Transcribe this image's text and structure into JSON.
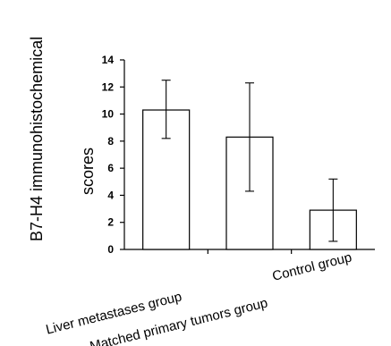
{
  "chart_data": {
    "type": "bar",
    "categories": [
      "Liver metastases group",
      "Matched primary tumors group",
      "Control group"
    ],
    "values": [
      10.3,
      8.3,
      2.9
    ],
    "error_low": [
      8.2,
      4.3,
      0.6
    ],
    "error_high": [
      12.5,
      12.3,
      5.2
    ],
    "ylabel_line1": "B7-H4 immunohistochemical",
    "ylabel_line2": "scores",
    "ylim": [
      0,
      14
    ],
    "yticks": [
      0,
      2,
      4,
      6,
      8,
      10,
      12,
      14
    ],
    "grid": false,
    "bar_fill": "#ffffff",
    "bar_stroke": "#000000"
  }
}
